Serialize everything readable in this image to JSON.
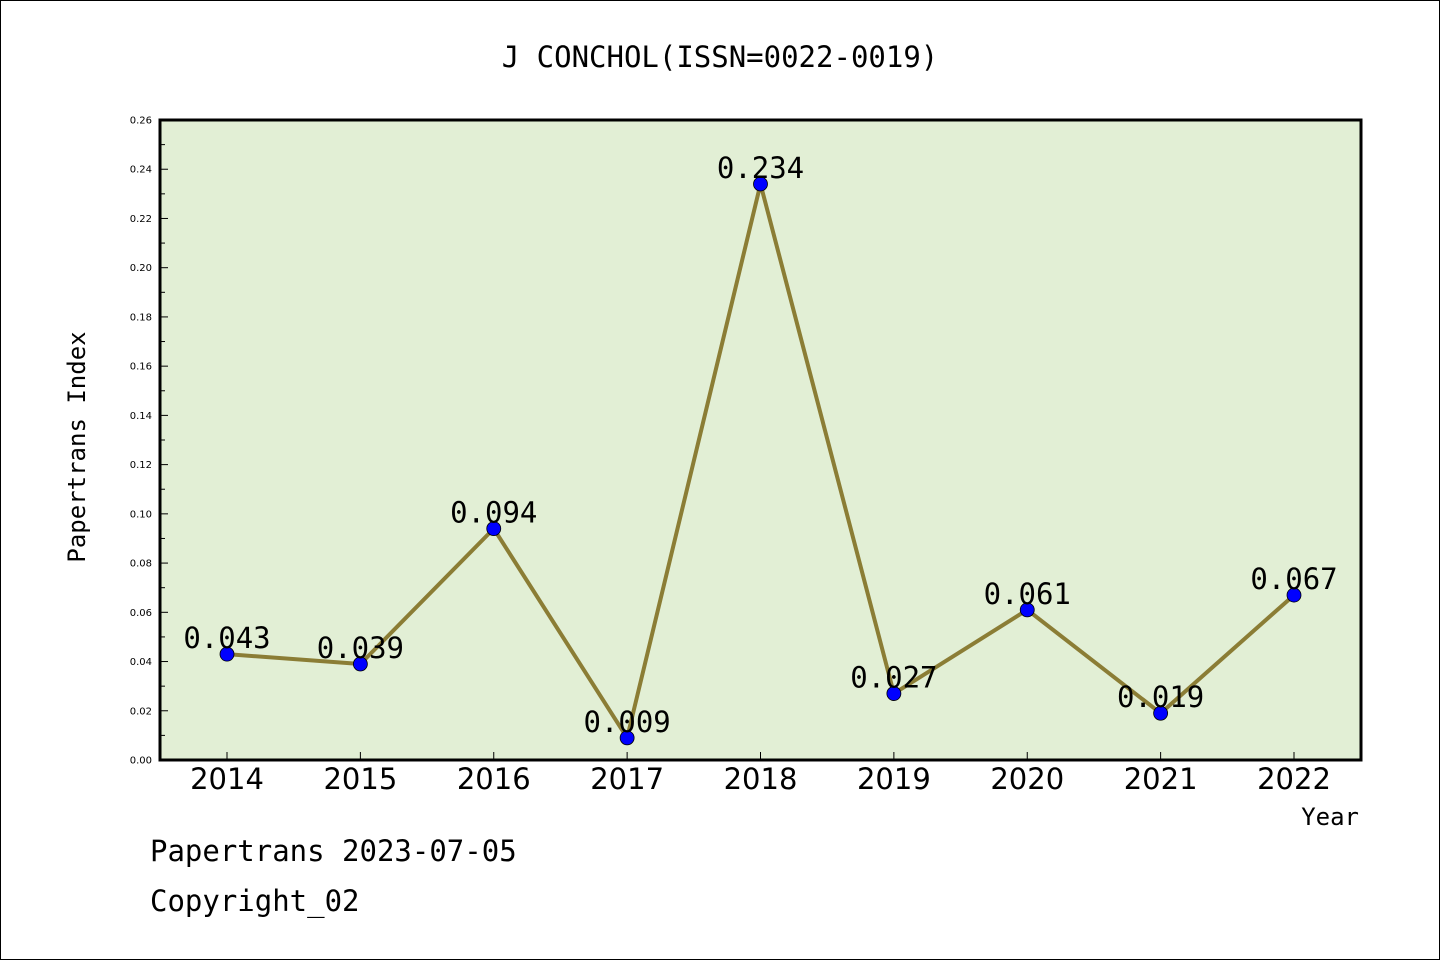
{
  "chart_data": {
    "type": "line",
    "title": "J CONCHOL(ISSN=0022-0019)",
    "xlabel": "Year",
    "ylabel": "Papertrans Index",
    "categories": [
      "2014",
      "2015",
      "2016",
      "2017",
      "2018",
      "2019",
      "2020",
      "2021",
      "2022"
    ],
    "series": [
      {
        "values": [
          0.043,
          0.039,
          0.094,
          0.009,
          0.234,
          0.027,
          0.061,
          0.019,
          0.067
        ],
        "labels": [
          "0.043",
          "0.039",
          "0.094",
          "0.009",
          "0.234",
          "0.027",
          "0.061",
          "0.019",
          "0.067"
        ]
      }
    ],
    "ylim": [
      0,
      0.26
    ],
    "yticks": [
      "0.00",
      "0.02",
      "0.04",
      "0.06",
      "0.08",
      "0.10",
      "0.12",
      "0.14",
      "0.16",
      "0.18",
      "0.20",
      "0.22",
      "0.24",
      "0.26"
    ],
    "grid": false,
    "colors": {
      "plot_background": "#e2efd5",
      "line": "#8b7d35",
      "marker": "#0000ff"
    }
  },
  "footer": {
    "line1": "Papertrans 2023-07-05",
    "line2": "Copyright_02"
  }
}
